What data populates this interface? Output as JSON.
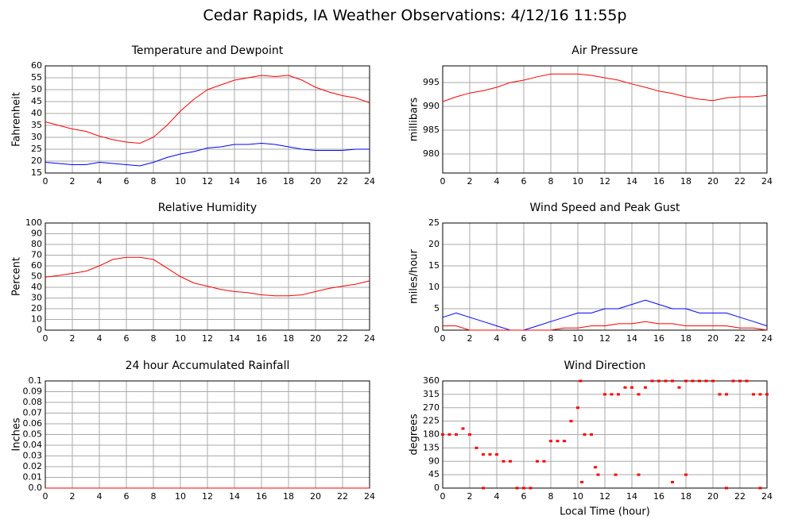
{
  "title": "Cedar Rapids, IA Weather Observations: 4/12/16 11:55p",
  "chart_data": [
    {
      "type": "line",
      "title": "Temperature and Dewpoint",
      "ylabel": "Fahrenheit",
      "grid": true,
      "x": [
        0,
        1,
        2,
        3,
        4,
        5,
        6,
        7,
        8,
        9,
        10,
        11,
        12,
        13,
        14,
        15,
        16,
        17,
        18,
        19,
        20,
        21,
        22,
        23,
        24
      ],
      "xlim": [
        0,
        24
      ],
      "xticks": [
        0,
        2,
        4,
        6,
        8,
        10,
        12,
        14,
        16,
        18,
        20,
        22,
        24
      ],
      "ylim": [
        15,
        60
      ],
      "yticks": [
        15,
        20,
        25,
        30,
        35,
        40,
        45,
        50,
        55,
        60
      ],
      "series": [
        {
          "color": "#ff0000",
          "values": [
            36.5,
            35,
            33.5,
            32.5,
            30.5,
            29,
            28,
            27.5,
            30,
            35,
            41,
            46,
            50,
            52,
            54,
            55,
            56,
            55.5,
            56,
            54,
            51,
            49,
            47.5,
            46.5,
            44.5
          ]
        },
        {
          "color": "#0000ff",
          "values": [
            19.5,
            19,
            18.5,
            18.5,
            19.5,
            19,
            18.5,
            18,
            19.5,
            21.5,
            23,
            24,
            25.5,
            26,
            27,
            27,
            27.5,
            27,
            26,
            25,
            24.5,
            24.5,
            24.5,
            25,
            25
          ]
        }
      ]
    },
    {
      "type": "line",
      "title": "Air Pressure",
      "ylabel": "millibars",
      "grid": true,
      "x": [
        0,
        1,
        2,
        3,
        4,
        5,
        6,
        7,
        8,
        9,
        10,
        11,
        12,
        13,
        14,
        15,
        16,
        17,
        18,
        19,
        20,
        21,
        22,
        23,
        24
      ],
      "xlim": [
        0,
        24
      ],
      "xticks": [
        0,
        2,
        4,
        6,
        8,
        10,
        12,
        14,
        16,
        18,
        20,
        22,
        24
      ],
      "ylim": [
        976,
        998.5
      ],
      "yticks": [
        980,
        985,
        990,
        995
      ],
      "series": [
        {
          "color": "#ff0000",
          "values": [
            991,
            992,
            992.8,
            993.3,
            994,
            995,
            995.5,
            996.2,
            996.8,
            996.8,
            996.8,
            996.5,
            996,
            995.5,
            994.7,
            994,
            993.2,
            992.7,
            992,
            991.5,
            991.2,
            991.8,
            992,
            992,
            992.3
          ]
        }
      ]
    },
    {
      "type": "line",
      "title": "Relative Humidity",
      "ylabel": "Percent",
      "grid": true,
      "x": [
        0,
        1,
        2,
        3,
        4,
        5,
        6,
        7,
        8,
        9,
        10,
        11,
        12,
        13,
        14,
        15,
        16,
        17,
        18,
        19,
        20,
        21,
        22,
        23,
        24
      ],
      "xlim": [
        0,
        24
      ],
      "xticks": [
        0,
        2,
        4,
        6,
        8,
        10,
        12,
        14,
        16,
        18,
        20,
        22,
        24
      ],
      "ylim": [
        0,
        100
      ],
      "yticks": [
        0,
        10,
        20,
        30,
        40,
        50,
        60,
        70,
        80,
        90,
        100
      ],
      "series": [
        {
          "color": "#ff0000",
          "values": [
            49.5,
            51,
            53,
            55,
            60,
            66,
            68,
            68,
            66,
            58,
            50,
            44,
            41,
            38,
            36,
            35,
            33,
            32,
            32,
            33,
            36,
            39,
            41,
            43,
            46
          ]
        }
      ]
    },
    {
      "type": "line",
      "title": "Wind Speed and Peak Gust",
      "ylabel": "miles/hour",
      "grid": true,
      "x": [
        0,
        1,
        2,
        3,
        4,
        5,
        6,
        7,
        8,
        9,
        10,
        11,
        12,
        13,
        14,
        15,
        16,
        17,
        18,
        19,
        20,
        21,
        22,
        23,
        24
      ],
      "xlim": [
        0,
        24
      ],
      "xticks": [
        0,
        2,
        4,
        6,
        8,
        10,
        12,
        14,
        16,
        18,
        20,
        22,
        24
      ],
      "ylim": [
        0,
        25
      ],
      "yticks": [
        0,
        5,
        10,
        15,
        20,
        25
      ],
      "series": [
        {
          "color": "#0000ff",
          "values": [
            3,
            4,
            3,
            2,
            1,
            0,
            0,
            1,
            2,
            3,
            4,
            4,
            5,
            5,
            6,
            7,
            6,
            5,
            5,
            4,
            4,
            4,
            3,
            2,
            1
          ]
        },
        {
          "color": "#ff0000",
          "values": [
            1,
            1,
            0,
            0,
            0,
            0,
            0,
            0,
            0,
            0.5,
            0.5,
            1,
            1,
            1.5,
            1.5,
            2,
            1.5,
            1.5,
            1,
            1,
            1,
            1,
            0.5,
            0.5,
            0
          ]
        }
      ]
    },
    {
      "type": "line",
      "title": "24 hour Accumulated Rainfall",
      "ylabel": "Inches",
      "grid": true,
      "x": [
        0,
        1,
        2,
        3,
        4,
        5,
        6,
        7,
        8,
        9,
        10,
        11,
        12,
        13,
        14,
        15,
        16,
        17,
        18,
        19,
        20,
        21,
        22,
        23,
        24
      ],
      "xlim": [
        0,
        24
      ],
      "xticks": [
        0,
        2,
        4,
        6,
        8,
        10,
        12,
        14,
        16,
        18,
        20,
        22,
        24
      ],
      "ylim": [
        0,
        0.1
      ],
      "yticks": [
        {
          "value": 0,
          "label": "0.0"
        },
        0.01,
        0.02,
        0.03,
        0.04,
        0.05,
        0.06,
        0.07,
        0.08,
        0.09,
        0.1
      ],
      "series": [
        {
          "color": "#ff0000",
          "values": [
            0,
            0,
            0,
            0,
            0,
            0,
            0,
            0,
            0,
            0,
            0,
            0,
            0,
            0,
            0,
            0,
            0,
            0,
            0,
            0,
            0,
            0,
            0,
            0,
            0
          ]
        }
      ]
    },
    {
      "type": "scatter",
      "title": "Wind Direction",
      "ylabel": "degrees",
      "xlabel": "Local Time (hour)",
      "grid": true,
      "x": [
        0,
        0.5,
        1,
        1.5,
        2,
        2.5,
        3,
        3.5,
        4,
        4.5,
        5,
        5.5,
        6,
        6.5,
        7,
        7.5,
        8,
        8.5,
        9,
        9.5,
        10,
        10.3,
        10.5,
        11,
        11.5,
        12,
        12.5,
        13,
        13.5,
        14,
        14.5,
        15,
        15.5,
        16,
        16.5,
        17,
        17.5,
        18,
        18.5,
        19,
        19.5,
        20,
        20.5,
        21,
        21.5,
        22,
        22.5,
        23,
        23.5,
        24,
        3,
        6,
        10.2,
        11.3,
        12.8,
        14.5,
        17,
        18,
        21,
        23.5
      ],
      "xlim": [
        0,
        24
      ],
      "xticks": [
        0,
        2,
        4,
        6,
        8,
        10,
        12,
        14,
        16,
        18,
        20,
        22,
        24
      ],
      "ylim": [
        0,
        360
      ],
      "yticks": [
        0,
        45,
        90,
        135,
        180,
        225,
        270,
        315,
        360
      ],
      "series": [
        {
          "color": "#ff0000",
          "values": [
            180,
            180,
            180,
            200,
            180,
            135,
            113,
            113,
            113,
            90,
            90,
            0,
            0,
            0,
            90,
            90,
            158,
            158,
            158,
            225,
            270,
            20,
            180,
            180,
            45,
            315,
            315,
            315,
            338,
            338,
            315,
            338,
            360,
            360,
            360,
            360,
            338,
            360,
            360,
            360,
            360,
            360,
            315,
            315,
            360,
            360,
            360,
            315,
            315,
            315,
            0,
            0,
            360,
            70,
            45,
            45,
            20,
            45,
            0,
            0
          ]
        }
      ]
    }
  ]
}
